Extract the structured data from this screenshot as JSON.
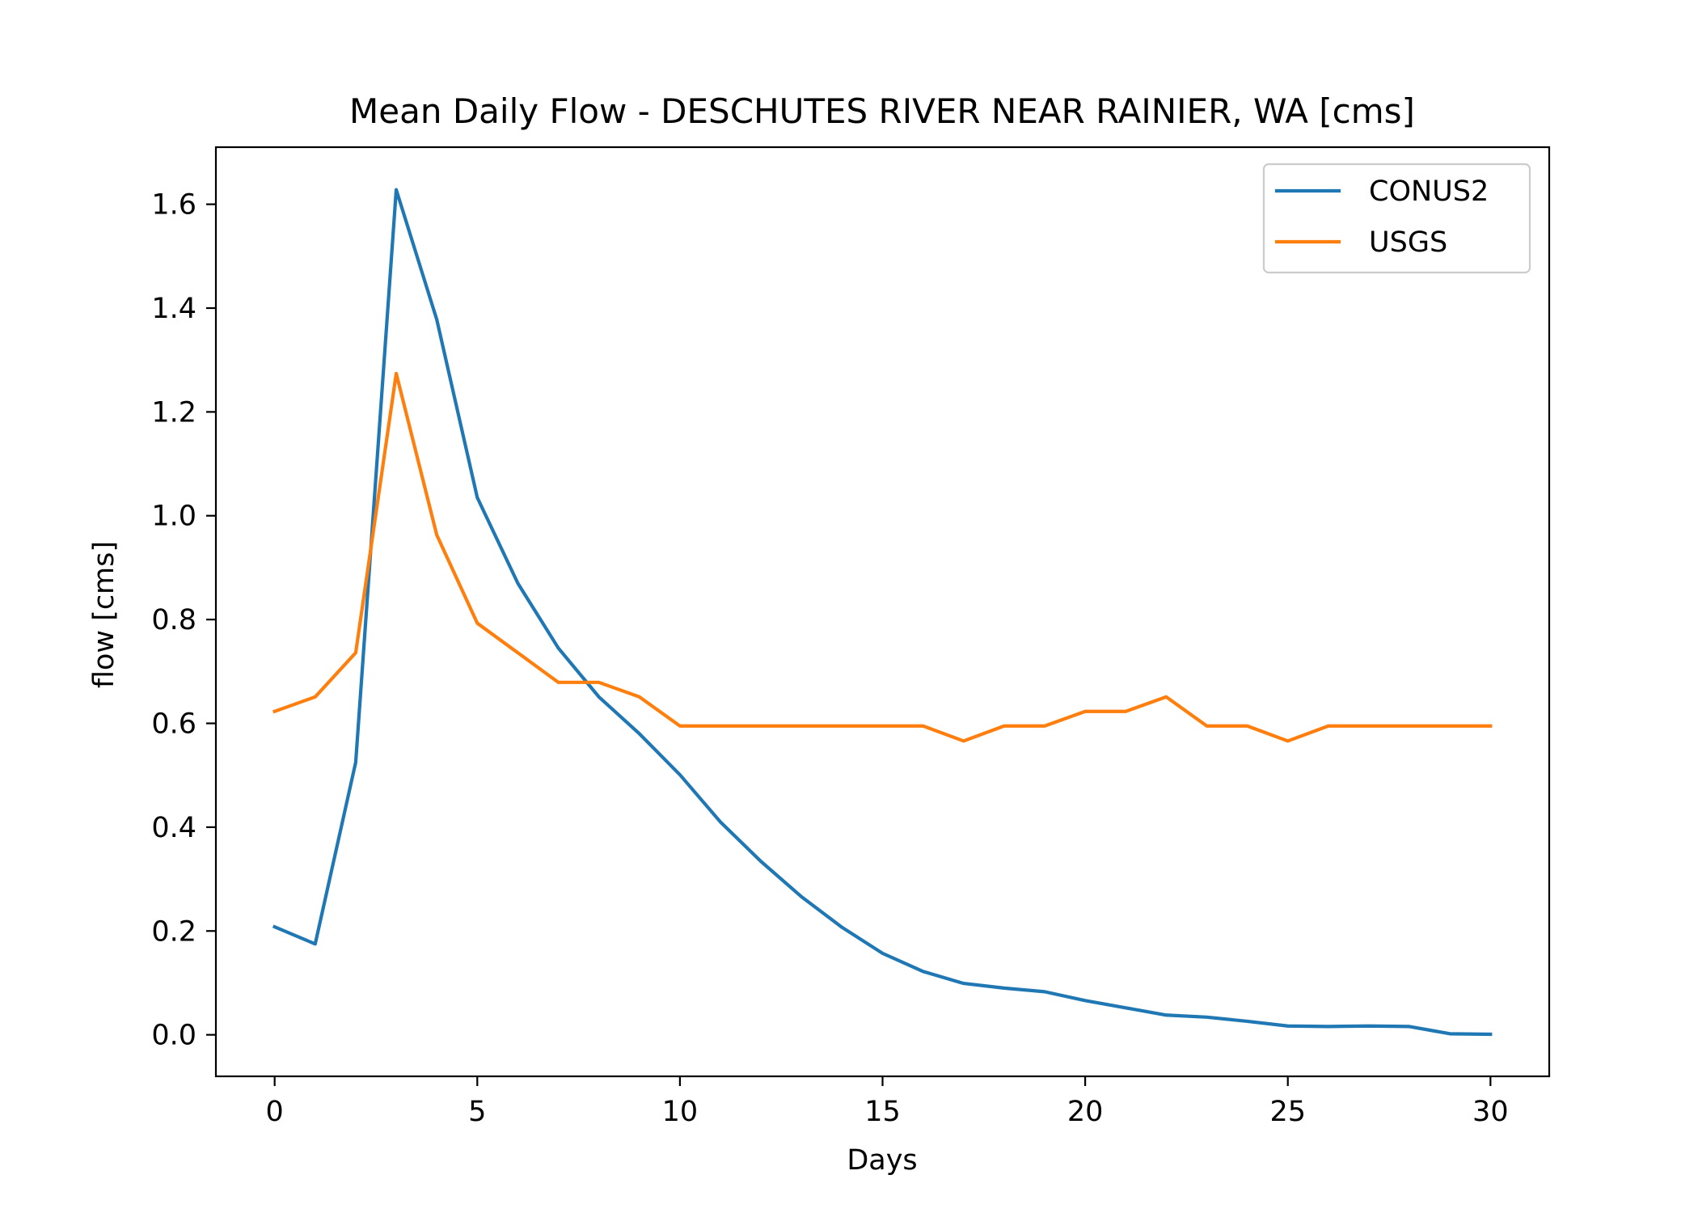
{
  "chart_data": {
    "type": "line",
    "title": "Mean Daily Flow - DESCHUTES RIVER NEAR RAINIER, WA [cms]",
    "xlabel": "Days",
    "ylabel": "flow [cms]",
    "xlim": [
      -1.45,
      31.45
    ],
    "ylim": [
      -0.08,
      1.71
    ],
    "xticks": [
      0,
      5,
      10,
      15,
      20,
      25,
      30
    ],
    "xtick_labels": [
      "0",
      "5",
      "10",
      "15",
      "20",
      "25",
      "30"
    ],
    "yticks": [
      0.0,
      0.2,
      0.4,
      0.6,
      0.8,
      1.0,
      1.2,
      1.4,
      1.6
    ],
    "ytick_labels": [
      "0.0",
      "0.2",
      "0.4",
      "0.6",
      "0.8",
      "1.0",
      "1.2",
      "1.4",
      "1.6"
    ],
    "grid": false,
    "legend_position": "top-right",
    "x": [
      0,
      1,
      2,
      3,
      4,
      5,
      6,
      7,
      8,
      9,
      10,
      11,
      12,
      13,
      14,
      15,
      16,
      17,
      18,
      19,
      20,
      21,
      22,
      23,
      24,
      25,
      26,
      27,
      28,
      29,
      30
    ],
    "series": [
      {
        "name": "CONUS2",
        "color": "#1f77b4",
        "values": [
          0.208,
          0.175,
          0.525,
          1.628,
          1.378,
          1.035,
          0.87,
          0.745,
          0.651,
          0.58,
          0.501,
          0.41,
          0.334,
          0.266,
          0.207,
          0.157,
          0.122,
          0.099,
          0.09,
          0.083,
          0.066,
          0.052,
          0.038,
          0.034,
          0.026,
          0.017,
          0.016,
          0.017,
          0.016,
          0.002,
          0.001
        ]
      },
      {
        "name": "USGS",
        "color": "#ff7f0e",
        "values": [
          0.623,
          0.651,
          0.736,
          1.274,
          0.963,
          0.793,
          0.736,
          0.679,
          0.679,
          0.651,
          0.595,
          0.595,
          0.595,
          0.595,
          0.595,
          0.595,
          0.595,
          0.566,
          0.595,
          0.595,
          0.623,
          0.623,
          0.651,
          0.595,
          0.595,
          0.566,
          0.595,
          0.595,
          0.595,
          0.595,
          0.595
        ]
      }
    ]
  }
}
